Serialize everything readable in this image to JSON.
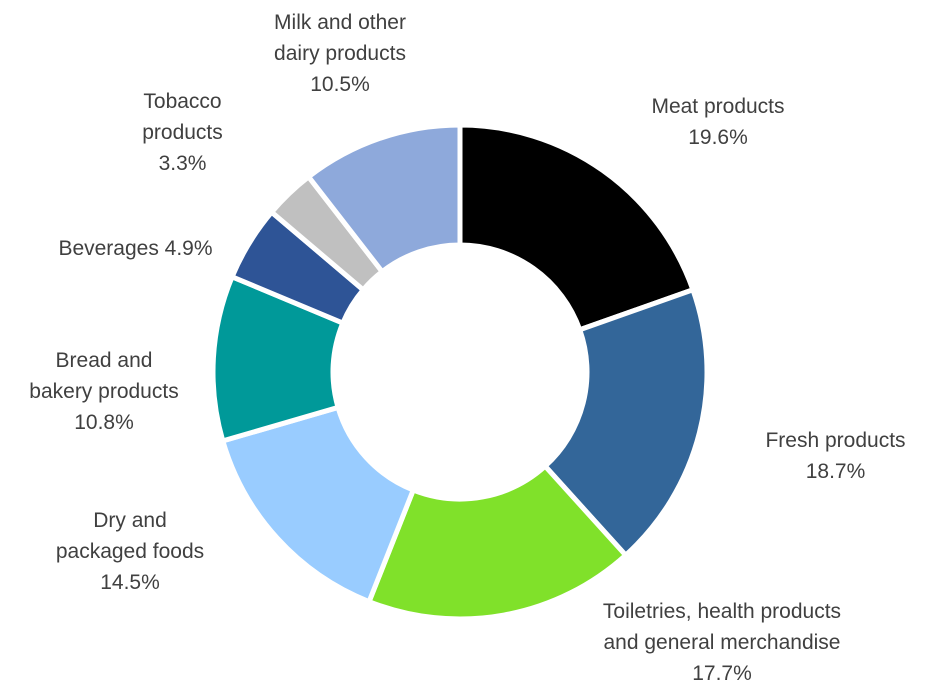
{
  "chart_data": {
    "type": "pie",
    "variant": "donut",
    "unit": "%",
    "legend": "none",
    "slices": [
      {
        "name": "Meat products",
        "value": 19.6,
        "value_label": "19.6%",
        "color": "#000000",
        "label_lines": [
          "Meat products",
          "19.6%"
        ]
      },
      {
        "name": "Fresh products",
        "value": 18.7,
        "value_label": "18.7%",
        "color": "#336699",
        "label_lines": [
          "Fresh products",
          "18.7%"
        ]
      },
      {
        "name": "Toiletries, health products and general merchandise",
        "value": 17.7,
        "value_label": "17.7%",
        "color": "#80E12A",
        "label_lines": [
          "Toiletries, health products",
          "and general merchandise",
          "17.7%"
        ]
      },
      {
        "name": "Dry and packaged foods",
        "value": 14.5,
        "value_label": "14.5%",
        "color": "#99CCFF",
        "label_lines": [
          "Dry and",
          "packaged foods",
          "14.5%"
        ]
      },
      {
        "name": "Bread and bakery products",
        "value": 10.8,
        "value_label": "10.8%",
        "color": "#009999",
        "label_lines": [
          "Bread and",
          "bakery products",
          "10.8%"
        ]
      },
      {
        "name": "Beverages",
        "value": 4.9,
        "value_label": "4.9%",
        "color": "#2E5496",
        "label_lines": [
          "Beverages 4.9%"
        ]
      },
      {
        "name": "Tobacco products",
        "value": 3.3,
        "value_label": "3.3%",
        "color": "#C0C0C0",
        "label_lines": [
          "Tobacco",
          "products",
          "3.3%"
        ]
      },
      {
        "name": "Milk and other dairy products",
        "value": 10.5,
        "value_label": "10.5%",
        "color": "#8EA9DB",
        "label_lines": [
          "Milk and other",
          "dairy products",
          "10.5%"
        ]
      }
    ]
  }
}
